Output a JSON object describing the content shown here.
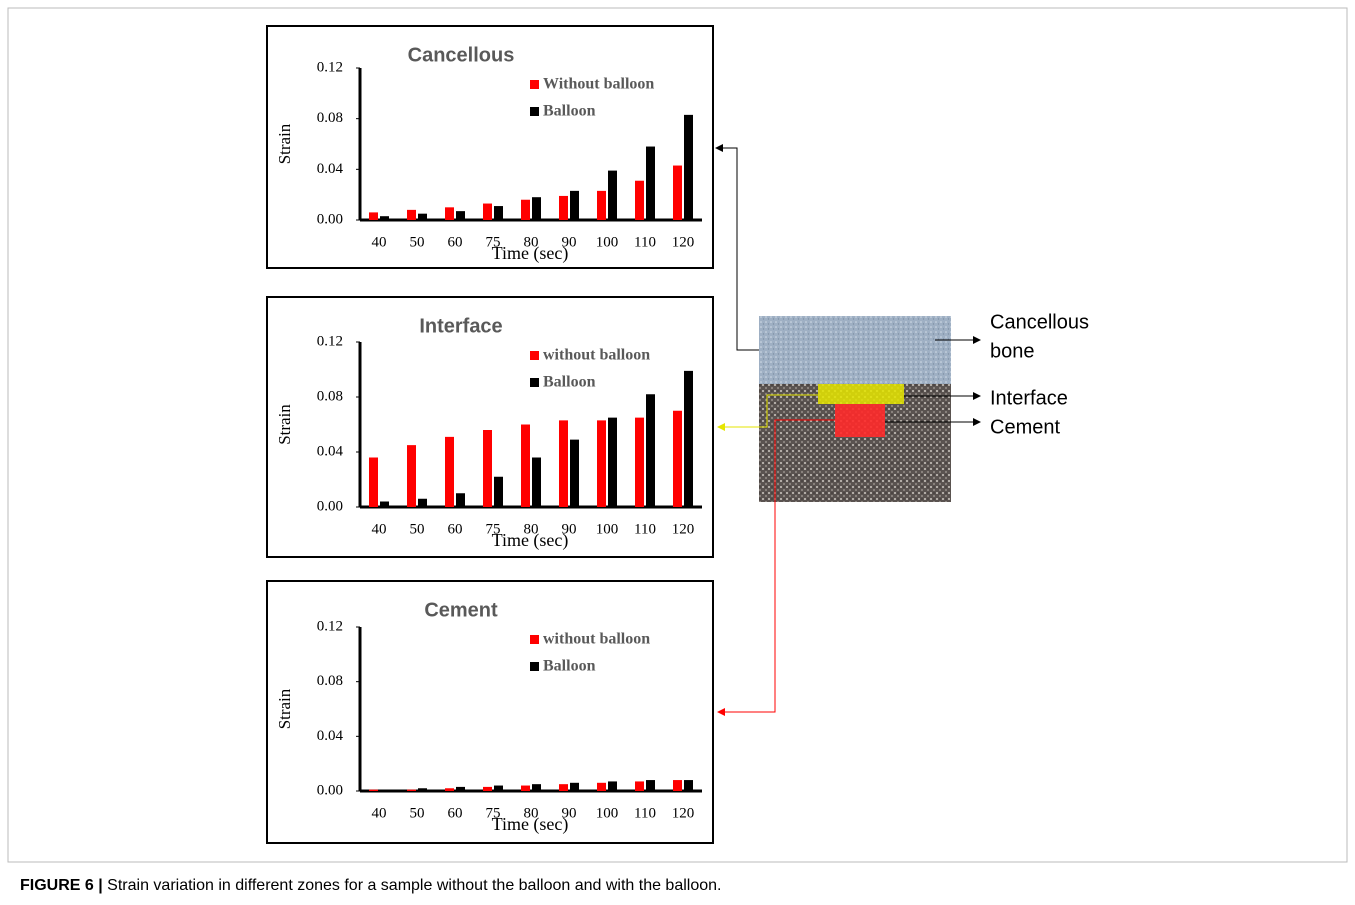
{
  "chart_data": [
    {
      "type": "bar",
      "title": "Cancellous",
      "y_label": "Strain",
      "x_label": "Time (sec)",
      "categories": [
        "40",
        "50",
        "60",
        "75",
        "80",
        "90",
        "100",
        "110",
        "120"
      ],
      "series": [
        {
          "name": "Without balloon",
          "color": "#ff0000",
          "values": [
            0.006,
            0.008,
            0.01,
            0.013,
            0.016,
            0.019,
            0.023,
            0.031,
            0.043
          ]
        },
        {
          "name": "Balloon",
          "color": "#000000",
          "values": [
            0.003,
            0.005,
            0.007,
            0.011,
            0.018,
            0.023,
            0.039,
            0.058,
            0.083
          ]
        }
      ],
      "ylim": [
        0,
        0.12
      ],
      "yticks": [
        {
          "value": 0,
          "label": "0.00"
        },
        {
          "value": 0.04,
          "label": "0.04"
        },
        {
          "value": 0.08,
          "label": "0.08"
        },
        {
          "value": 0.12,
          "label": "0.12"
        }
      ],
      "grid": false
    },
    {
      "type": "bar",
      "title": "Interface",
      "y_label": "Strain",
      "x_label": "Time (sec)",
      "categories": [
        "40",
        "50",
        "60",
        "75",
        "80",
        "90",
        "100",
        "110",
        "120"
      ],
      "series": [
        {
          "name": "without balloon",
          "color": "#ff0000",
          "values": [
            0.036,
            0.045,
            0.051,
            0.056,
            0.06,
            0.063,
            0.063,
            0.065,
            0.07
          ]
        },
        {
          "name": "Balloon",
          "color": "#000000",
          "values": [
            0.004,
            0.006,
            0.01,
            0.022,
            0.036,
            0.049,
            0.065,
            0.082,
            0.099
          ]
        }
      ],
      "ylim": [
        0,
        0.12
      ],
      "yticks": [
        {
          "value": 0,
          "label": "0.00"
        },
        {
          "value": 0.04,
          "label": "0.04"
        },
        {
          "value": 0.08,
          "label": "0.08"
        },
        {
          "value": 0.12,
          "label": "0.12"
        }
      ],
      "grid": false
    },
    {
      "type": "bar",
      "title": "Cement",
      "y_label": "Strain",
      "x_label": "Time (sec)",
      "categories": [
        "40",
        "50",
        "60",
        "75",
        "80",
        "90",
        "100",
        "110",
        "120"
      ],
      "series": [
        {
          "name": "without balloon",
          "color": "#ff0000",
          "values": [
            0.001,
            0.001,
            0.002,
            0.003,
            0.004,
            0.005,
            0.006,
            0.007,
            0.008
          ]
        },
        {
          "name": "Balloon",
          "color": "#000000",
          "values": [
            0.001,
            0.002,
            0.003,
            0.004,
            0.005,
            0.006,
            0.007,
            0.008,
            0.008
          ]
        }
      ],
      "ylim": [
        0,
        0.12
      ],
      "yticks": [
        {
          "value": 0,
          "label": "0.00"
        },
        {
          "value": 0.04,
          "label": "0.04"
        },
        {
          "value": 0.08,
          "label": "0.08"
        },
        {
          "value": 0.12,
          "label": "0.12"
        }
      ],
      "grid": false
    }
  ],
  "diagram": {
    "cancellous_label": [
      "Cancellous",
      "bone"
    ],
    "interface_label": "Interface",
    "cement_label": "Cement"
  },
  "caption": {
    "label": "FIGURE 6 |",
    "text": "Strain variation in different zones for a sample without the balloon and with the balloon."
  }
}
